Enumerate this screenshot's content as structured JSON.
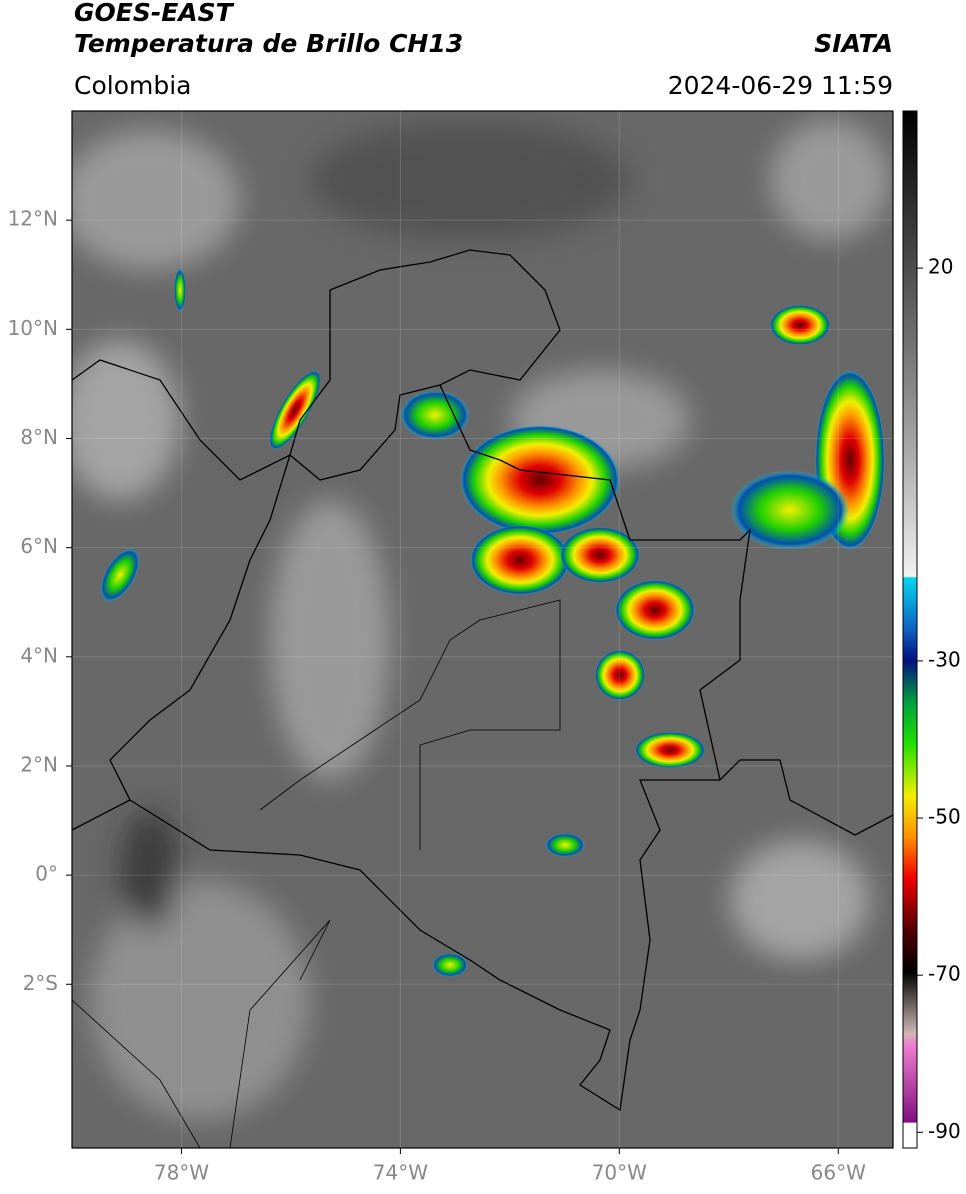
{
  "header": {
    "satellite": "GOES-EAST",
    "product": "Temperatura de Brillo CH13",
    "source": "SIATA",
    "region": "Colombia",
    "datetime": "2024-06-29 11:59"
  },
  "map": {
    "xlim": [
      -80,
      -65
    ],
    "ylim": [
      -5,
      14
    ],
    "xticks": [
      {
        "value": -78,
        "label": "78°W"
      },
      {
        "value": -74,
        "label": "74°W"
      },
      {
        "value": -70,
        "label": "70°W"
      },
      {
        "value": -66,
        "label": "66°W"
      }
    ],
    "yticks": [
      {
        "value": 12,
        "label": "12°N"
      },
      {
        "value": 10,
        "label": "10°N"
      },
      {
        "value": 8,
        "label": "8°N"
      },
      {
        "value": 6,
        "label": "6°N"
      },
      {
        "value": 4,
        "label": "4°N"
      },
      {
        "value": 2,
        "label": "2°N"
      },
      {
        "value": 0,
        "label": "0°"
      },
      {
        "value": -2,
        "label": "2°S"
      }
    ]
  },
  "colorbar": {
    "lim": [
      -92,
      40
    ],
    "ticks": [
      20,
      -30,
      -50,
      -70,
      -90
    ]
  }
}
